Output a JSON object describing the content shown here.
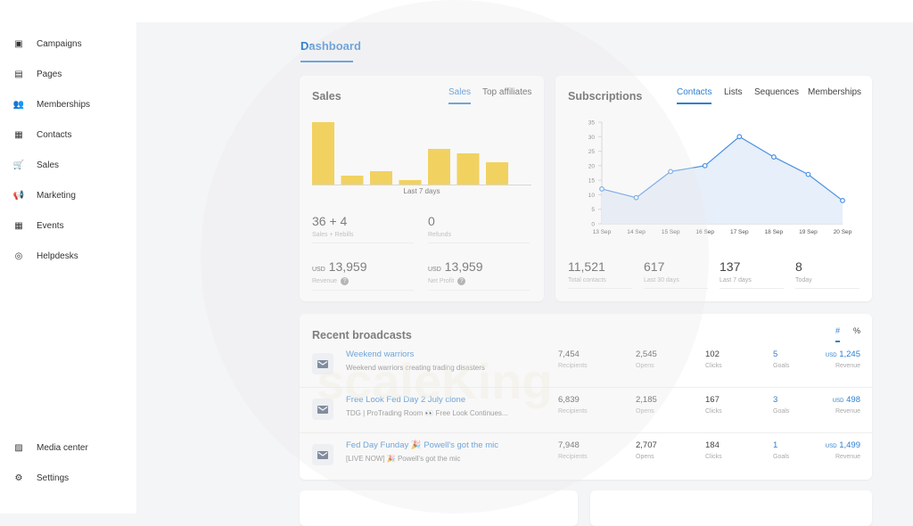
{
  "sidebar": {
    "items": [
      {
        "label": "Campaigns",
        "icon": "box-icon"
      },
      {
        "label": "Pages",
        "icon": "page-icon"
      },
      {
        "label": "Memberships",
        "icon": "people-icon"
      },
      {
        "label": "Contacts",
        "icon": "contact-icon"
      },
      {
        "label": "Sales",
        "icon": "cart-icon"
      },
      {
        "label": "Marketing",
        "icon": "megaphone-icon"
      },
      {
        "label": "Events",
        "icon": "calendar-icon"
      },
      {
        "label": "Helpdesks",
        "icon": "lifebuoy-icon"
      }
    ],
    "bottom": [
      {
        "label": "Media center",
        "icon": "media-icon"
      },
      {
        "label": "Settings",
        "icon": "gear-icon"
      }
    ]
  },
  "header": {
    "tab": "Dashboard"
  },
  "sales": {
    "title": "Sales",
    "tabs": [
      "Sales",
      "Top affiliates"
    ],
    "period": "Last 7 days",
    "stats": [
      {
        "value": "36 + 4",
        "label": "Sales + Rebills"
      },
      {
        "value": "0",
        "label": "Refunds"
      },
      {
        "currency": "USD",
        "value": "13,959",
        "label": "Revenue"
      },
      {
        "currency": "USD",
        "value": "13,959",
        "label": "Net Profit"
      }
    ]
  },
  "subscriptions": {
    "title": "Subscriptions",
    "tabs": [
      "Contacts",
      "Lists",
      "Sequences",
      "Memberships"
    ],
    "stats": [
      {
        "value": "11,521",
        "label": "Total contacts"
      },
      {
        "value": "617",
        "label": "Last 30 days"
      },
      {
        "value": "137",
        "label": "Last 7 days"
      },
      {
        "value": "8",
        "label": "Today"
      }
    ]
  },
  "broadcasts": {
    "title": "Recent broadcasts",
    "toggles": [
      "#",
      "%"
    ],
    "labels": {
      "recipients": "Recipients",
      "opens": "Opens",
      "clicks": "Clicks",
      "goals": "Goals",
      "revenue": "Revenue",
      "currency": "USD"
    },
    "rows": [
      {
        "title": "Weekend warriors",
        "subtitle": "Weekend warriors creating trading disasters",
        "recipients": "7,454",
        "opens": "2,545",
        "clicks": "102",
        "goals": "5",
        "revenue": "1,245"
      },
      {
        "title": "Free Look Fed Day 2 July clone",
        "subtitle": "TDG | ProTrading Room 👀 Free Look Continues...",
        "recipients": "6,839",
        "opens": "2,185",
        "clicks": "167",
        "goals": "3",
        "revenue": "498"
      },
      {
        "title": "Fed Day Funday 🎉 Powell's got the mic",
        "subtitle": "[LIVE NOW] 🎉 Powell's got the mic",
        "recipients": "7,948",
        "opens": "2,707",
        "clicks": "184",
        "goals": "1",
        "revenue": "1,499"
      }
    ]
  },
  "watermark": "scaleKing",
  "chart_data": [
    {
      "type": "bar",
      "title": "Sales",
      "xlabel": "Last 7 days",
      "values": [
        14,
        2,
        3,
        1,
        8,
        7,
        5
      ],
      "color": "#f5c518"
    },
    {
      "type": "area",
      "title": "Subscriptions",
      "categories": [
        "13 Sep",
        "14 Sep",
        "15 Sep",
        "16 Sep",
        "17 Sep",
        "18 Sep",
        "19 Sep",
        "20 Sep"
      ],
      "values": [
        12,
        9,
        18,
        20,
        30,
        23,
        17,
        8
      ],
      "ylim": [
        0,
        35
      ],
      "yticks": [
        0,
        5,
        10,
        15,
        20,
        25,
        30,
        35
      ],
      "color": "#4a90e2"
    }
  ]
}
